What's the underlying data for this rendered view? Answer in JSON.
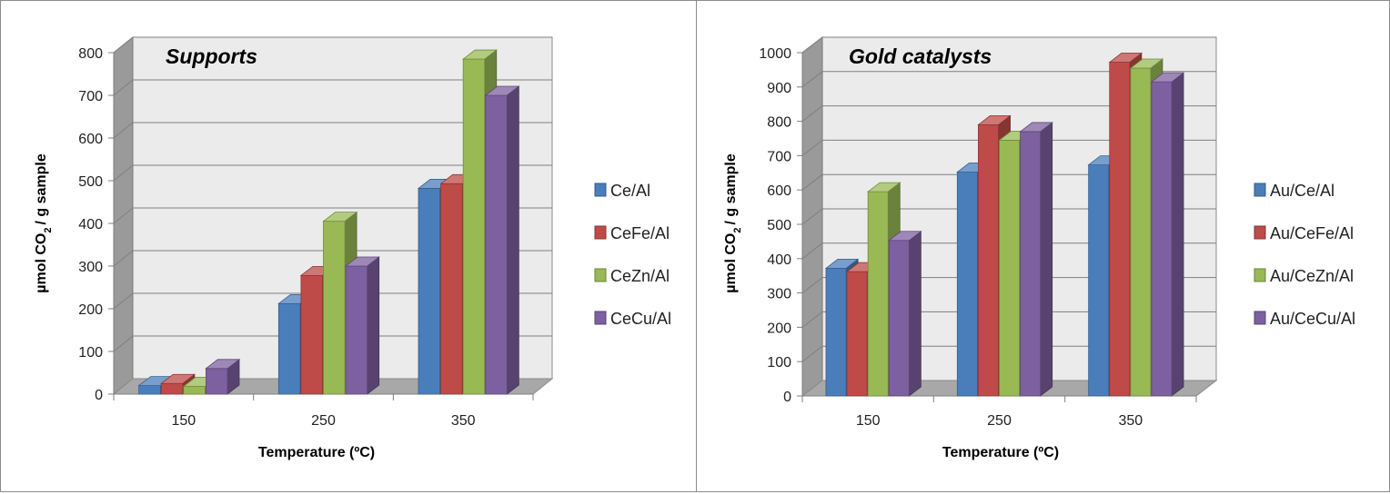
{
  "chart_data": [
    {
      "type": "bar",
      "title": "Supports",
      "xlabel": "Temperature (ºC)",
      "ylabel_main": "µmol CO",
      "ylabel_sub": "2",
      "ylabel_rest": "/ g sample",
      "categories": [
        "150",
        "250",
        "350"
      ],
      "ylim": [
        0,
        800
      ],
      "yticks": [
        0,
        100,
        200,
        300,
        400,
        500,
        600,
        700,
        800
      ],
      "grid": true,
      "legend_position": "right",
      "series": [
        {
          "name": "Ce/Al",
          "color": "#4a7ebb",
          "values": [
            20,
            212,
            482
          ]
        },
        {
          "name": "CeFe/Al",
          "color": "#be4b48",
          "values": [
            25,
            278,
            493
          ]
        },
        {
          "name": "CeZn/Al",
          "color": "#98b954",
          "values": [
            18,
            405,
            785
          ]
        },
        {
          "name": "CeCu/Al",
          "color": "#7d60a0",
          "values": [
            60,
            300,
            700
          ]
        }
      ]
    },
    {
      "type": "bar",
      "title": "Gold catalysts",
      "xlabel": "Temperature (ºC)",
      "ylabel_main": "µmol CO",
      "ylabel_sub": "2",
      "ylabel_rest": "/ g sample",
      "categories": [
        "150",
        "250",
        "350"
      ],
      "ylim": [
        0,
        1000
      ],
      "yticks": [
        0,
        100,
        200,
        300,
        400,
        500,
        600,
        700,
        800,
        900,
        1000
      ],
      "grid": true,
      "legend_position": "right",
      "series": [
        {
          "name": "Au/Ce/Al",
          "color": "#4a7ebb",
          "values": [
            372,
            652,
            673
          ]
        },
        {
          "name": "Au/CeFe/Al",
          "color": "#be4b48",
          "values": [
            362,
            790,
            972
          ]
        },
        {
          "name": "Au/CeZn/Al",
          "color": "#98b954",
          "values": [
            595,
            745,
            955
          ]
        },
        {
          "name": "Au/CeCu/Al",
          "color": "#7d60a0",
          "values": [
            453,
            770,
            915
          ]
        }
      ]
    }
  ]
}
